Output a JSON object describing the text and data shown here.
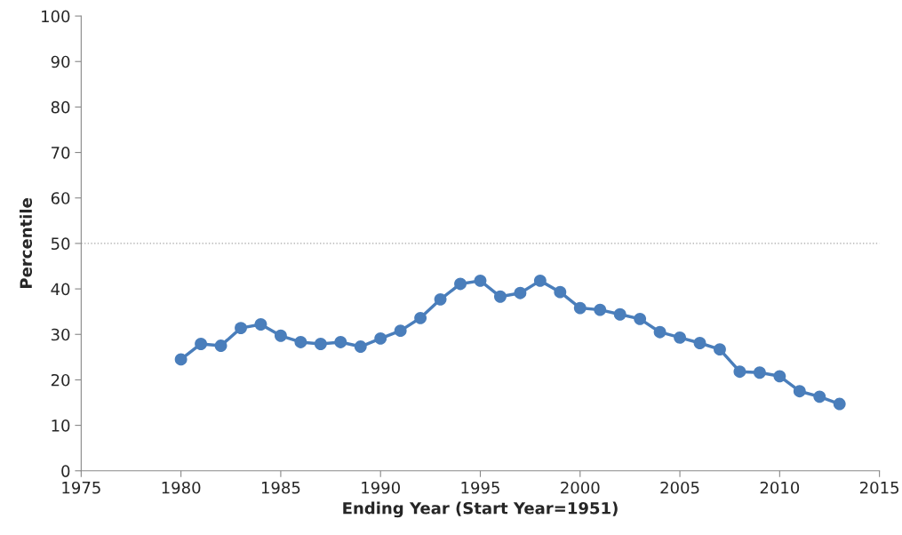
{
  "chart_data": {
    "type": "line",
    "xlabel": "Ending Year (Start Year=1951)",
    "ylabel": "Percentile",
    "x": [
      1980,
      1981,
      1982,
      1983,
      1984,
      1985,
      1986,
      1987,
      1988,
      1989,
      1990,
      1991,
      1992,
      1993,
      1994,
      1995,
      1996,
      1997,
      1998,
      1999,
      2000,
      2001,
      2002,
      2003,
      2004,
      2005,
      2006,
      2007,
      2008,
      2009,
      2010,
      2011,
      2012,
      2013
    ],
    "series": [
      {
        "color": "#4a7ebb",
        "values": [
          24.5,
          27.9,
          27.5,
          31.4,
          32.2,
          29.7,
          28.3,
          27.9,
          28.3,
          27.3,
          29.1,
          30.8,
          33.6,
          37.7,
          41.1,
          41.8,
          38.3,
          39.1,
          41.8,
          39.3,
          35.8,
          35.4,
          34.4,
          33.4,
          30.5,
          29.3,
          28.1,
          26.7,
          21.8,
          21.6,
          20.8,
          17.5,
          16.3,
          14.7
        ]
      }
    ],
    "xlim": [
      1975,
      2015
    ],
    "xticks": [
      1975,
      1980,
      1985,
      1990,
      1995,
      2000,
      2005,
      2010,
      2015
    ],
    "ylim": [
      0,
      100
    ],
    "yticks": [
      0,
      10,
      20,
      30,
      40,
      50,
      60,
      70,
      80,
      90,
      100
    ],
    "ref_lines": [
      {
        "axis": "y",
        "value": 50,
        "color": "#a6a6a6",
        "line_style": "dotted"
      }
    ],
    "marker": "circle",
    "line_style": "solid",
    "grid": false
  }
}
